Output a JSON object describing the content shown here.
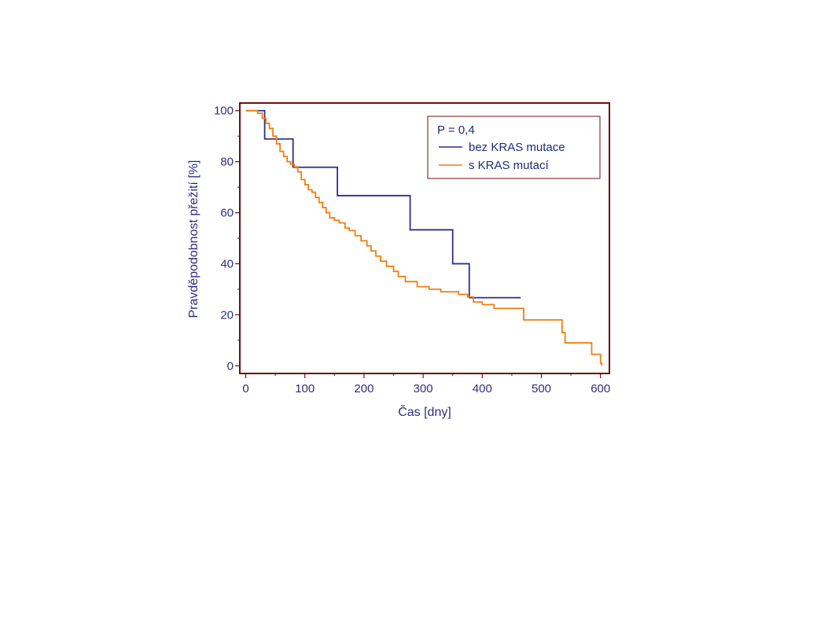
{
  "chart_data": {
    "type": "line",
    "title": "",
    "xlabel": "Čas [dny]",
    "ylabel": "Pravděpodobnost přežití [%]",
    "xlim": [
      -10,
      615
    ],
    "ylim": [
      -3,
      103
    ],
    "xticks": [
      0,
      100,
      200,
      300,
      400,
      500,
      600
    ],
    "yticks": [
      0,
      20,
      40,
      60,
      80,
      100
    ],
    "grid": false,
    "legend_position": "top-right",
    "annotation": "P = 0,4",
    "colors": {
      "axis": "#6b0f0f",
      "tick_text": "#2e2e80"
    },
    "series": [
      {
        "name": "bez KRAS mutace",
        "color": "#2e2e8a",
        "step": true,
        "x": [
          0,
          32,
          80,
          155,
          278,
          350,
          378,
          465
        ],
        "y": [
          100,
          88.9,
          77.8,
          66.7,
          53.3,
          40,
          26.7,
          26.7
        ]
      },
      {
        "name": "s KRAS mutací",
        "color": "#f07f11",
        "step": true,
        "x": [
          0,
          20,
          28,
          34,
          40,
          46,
          52,
          58,
          64,
          70,
          76,
          82,
          88,
          94,
          100,
          106,
          112,
          118,
          124,
          130,
          136,
          142,
          150,
          158,
          168,
          175,
          185,
          195,
          205,
          212,
          220,
          228,
          238,
          250,
          258,
          270,
          290,
          310,
          330,
          360,
          375,
          385,
          400,
          420,
          470,
          535,
          540,
          585,
          600,
          602
        ],
        "y": [
          100,
          99,
          97,
          95,
          93,
          90,
          87,
          84,
          82,
          80,
          79,
          78,
          76,
          73,
          71,
          69,
          68,
          66,
          64,
          62,
          60,
          58,
          57,
          56,
          54,
          53,
          51,
          49,
          47,
          45,
          43,
          41,
          39,
          37,
          35,
          33,
          31,
          30,
          29,
          28,
          27,
          25,
          24,
          22.5,
          18,
          13,
          9,
          4.5,
          1,
          0
        ]
      }
    ]
  }
}
